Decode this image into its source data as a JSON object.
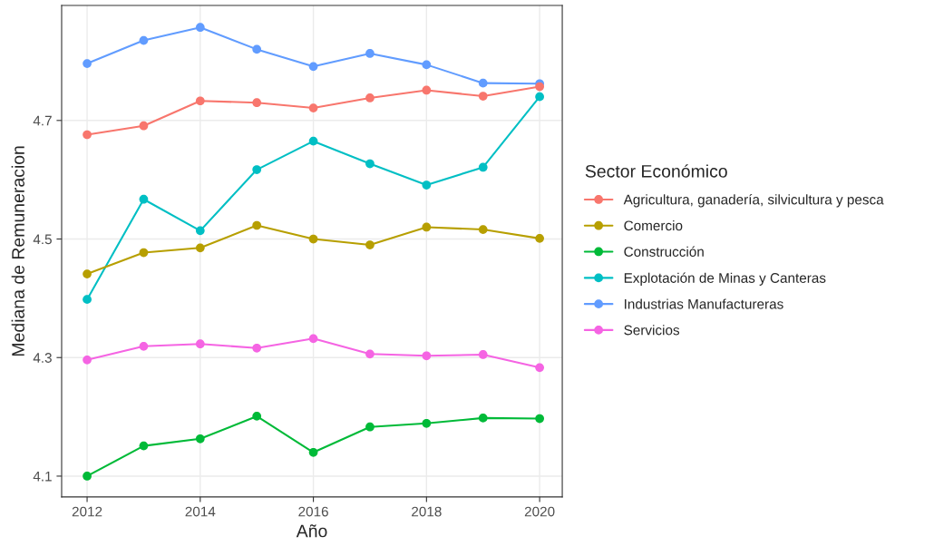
{
  "chart_data": {
    "type": "line",
    "xlabel": "Año",
    "ylabel": "Mediana de Remuneracion",
    "legend_title": "Sector Económico",
    "x": [
      2012,
      2013,
      2014,
      2015,
      2016,
      2017,
      2018,
      2019,
      2020
    ],
    "series": [
      {
        "name": "Agricultura, ganadería, silvicultura y pesca",
        "color": "#f8766d",
        "values": [
          4.676,
          4.691,
          4.733,
          4.73,
          4.721,
          4.738,
          4.751,
          4.741,
          4.757
        ]
      },
      {
        "name": "Comercio",
        "color": "#b79f00",
        "values": [
          4.441,
          4.477,
          4.485,
          4.523,
          4.5,
          4.49,
          4.52,
          4.516,
          4.501
        ]
      },
      {
        "name": "Construcción",
        "color": "#00ba38",
        "values": [
          4.1,
          4.151,
          4.163,
          4.201,
          4.14,
          4.183,
          4.189,
          4.198,
          4.197
        ]
      },
      {
        "name": "Explotación de Minas y Canteras",
        "color": "#00bfc4",
        "values": [
          4.398,
          4.567,
          4.514,
          4.617,
          4.665,
          4.627,
          4.591,
          4.621,
          4.74
        ]
      },
      {
        "name": "Industrias Manufactureras",
        "color": "#619cff",
        "values": [
          4.796,
          4.835,
          4.857,
          4.82,
          4.791,
          4.813,
          4.794,
          4.763,
          4.762
        ]
      },
      {
        "name": "Servicios",
        "color": "#f564e3",
        "values": [
          4.296,
          4.319,
          4.323,
          4.316,
          4.332,
          4.306,
          4.303,
          4.305,
          4.283
        ]
      }
    ],
    "xlim": [
      2011.55,
      2020.4
    ],
    "xticks": [
      2012,
      2014,
      2016,
      2018,
      2020
    ],
    "ylim": [
      4.065,
      4.894
    ],
    "yticks": [
      4.1,
      4.3,
      4.5,
      4.7
    ],
    "grid": true,
    "legend": "right",
    "marker": "circle",
    "line_style": "solid"
  }
}
